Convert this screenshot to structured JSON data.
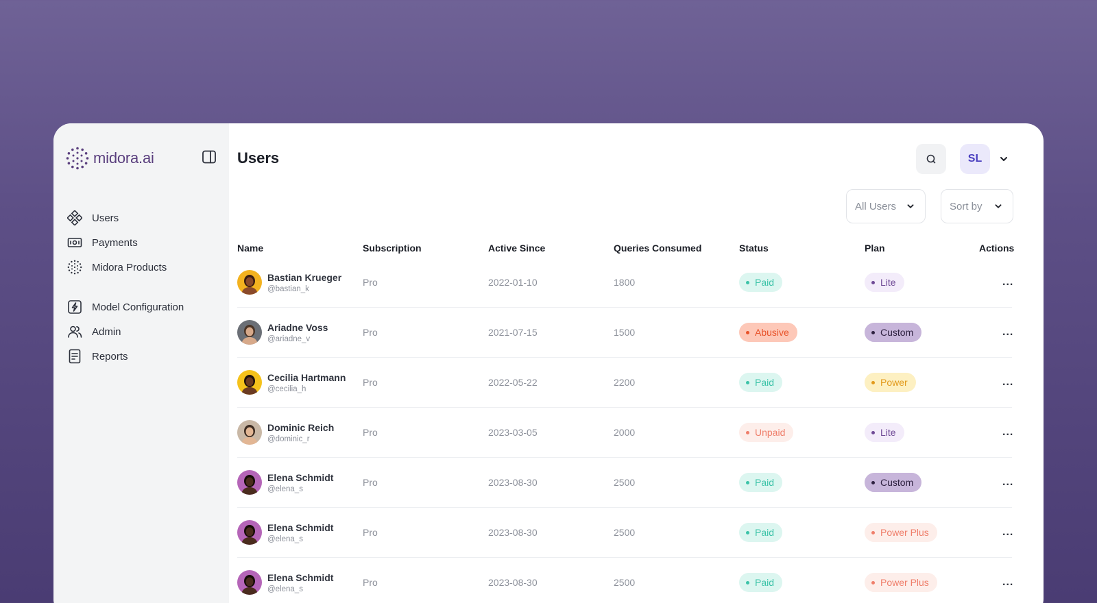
{
  "brand": {
    "name": "midora.ai"
  },
  "sidebar": {
    "items": [
      {
        "label": "Users",
        "icon": "grid-diamond-icon"
      },
      {
        "label": "Payments",
        "icon": "cash-icon"
      },
      {
        "label": "Midora Products",
        "icon": "dotted-circle-icon"
      },
      {
        "label": "Model Configuration",
        "icon": "bolt-square-icon"
      },
      {
        "label": "Admin",
        "icon": "users-icon"
      },
      {
        "label": "Reports",
        "icon": "document-icon"
      }
    ]
  },
  "header": {
    "title": "Users",
    "avatar_initials": "SL"
  },
  "filters": {
    "users": "All Users",
    "sort": "Sort by"
  },
  "table": {
    "columns": [
      "Name",
      "Subscription",
      "Active Since",
      "Queries Consumed",
      "Status",
      "Plan",
      "Actions"
    ],
    "rows": [
      {
        "name": "Bastian Krueger",
        "handle": "@bastian_k",
        "subscription": "Pro",
        "active_since": "2022-01-10",
        "queries": "1800",
        "status": "Paid",
        "plan": "Lite",
        "actions": "..."
      },
      {
        "name": "Ariadne Voss",
        "handle": "@ariadne_v",
        "subscription": "Pro",
        "active_since": "2021-07-15",
        "queries": "1500",
        "status": "Abusive",
        "plan": "Custom",
        "actions": "..."
      },
      {
        "name": "Cecilia Hartmann",
        "handle": "@cecilia_h",
        "subscription": "Pro",
        "active_since": "2022-05-22",
        "queries": "2200",
        "status": "Paid",
        "plan": "Power",
        "actions": "..."
      },
      {
        "name": "Dominic Reich",
        "handle": "@dominic_r",
        "subscription": "Pro",
        "active_since": "2023-03-05",
        "queries": "2000",
        "status": "Unpaid",
        "plan": "Lite",
        "actions": "..."
      },
      {
        "name": "Elena Schmidt",
        "handle": "@elena_s",
        "subscription": "Pro",
        "active_since": "2023-08-30",
        "queries": "2500",
        "status": "Paid",
        "plan": "Custom",
        "actions": "..."
      },
      {
        "name": "Elena Schmidt",
        "handle": "@elena_s",
        "subscription": "Pro",
        "active_since": "2023-08-30",
        "queries": "2500",
        "status": "Paid",
        "plan": "Power Plus",
        "actions": "..."
      },
      {
        "name": "Elena Schmidt",
        "handle": "@elena_s",
        "subscription": "Pro",
        "active_since": "2023-08-30",
        "queries": "2500",
        "status": "Paid",
        "plan": "Power Plus",
        "actions": "..."
      }
    ]
  },
  "colors": {
    "status": {
      "Paid": {
        "bg": "#dcf6f0",
        "fg": "#3cc3a8"
      },
      "Abusive": {
        "bg": "#fdc8b8",
        "fg": "#e8532a"
      },
      "Unpaid": {
        "bg": "#fdeeea",
        "fg": "#ef7e6a"
      }
    },
    "plan": {
      "Lite": {
        "bg": "#f3ecfa",
        "fg": "#6f4a96"
      },
      "Custom": {
        "bg": "#c7b5da",
        "fg": "#2e2140"
      },
      "Power": {
        "bg": "#fdf0c2",
        "fg": "#e29a1c"
      },
      "Power Plus": {
        "bg": "#fdeeea",
        "fg": "#ef7e6a"
      }
    }
  }
}
